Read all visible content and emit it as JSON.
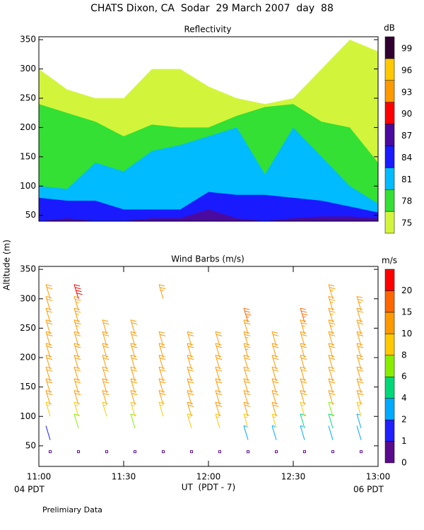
{
  "title": "CHATS Dixon, CA  Sodar  29 March 2007  day  88",
  "chart_data": [
    {
      "type": "contour",
      "title": "Reflectivity",
      "x": [
        660,
        670,
        680,
        690,
        700,
        710,
        720,
        730,
        740,
        750,
        760,
        770,
        780
      ],
      "xlim": [
        660,
        780
      ],
      "ylim": [
        40,
        355
      ],
      "yticks": [
        50,
        100,
        150,
        200,
        250,
        300,
        350
      ],
      "contours": [
        [
          300,
          265,
          250,
          250,
          300,
          300,
          270,
          250,
          240,
          250,
          300,
          350,
          330
        ],
        [
          240,
          225,
          210,
          185,
          205,
          200,
          200,
          220,
          235,
          240,
          210,
          200,
          140
        ],
        [
          100,
          95,
          140,
          125,
          160,
          170,
          185,
          200,
          120,
          200,
          150,
          100,
          70
        ],
        [
          80,
          75,
          75,
          60,
          60,
          60,
          90,
          85,
          85,
          80,
          75,
          65,
          55
        ],
        [
          40,
          45,
          40,
          40,
          45,
          45,
          60,
          45,
          40,
          45,
          48,
          48,
          45
        ]
      ],
      "colorbar": {
        "title": "dB",
        "levels": [
          75,
          78,
          81,
          84,
          87,
          90,
          93,
          96,
          99
        ],
        "colors": [
          "#d2f53c",
          "#33e033",
          "#00bbff",
          "#1a1aff",
          "#4a0aa0",
          "#ff0000",
          "#ff9900",
          "#ffc800",
          "#300030"
        ]
      }
    },
    {
      "type": "barb",
      "title": "Wind Barbs (m/s)",
      "ylabel": "Altitude (m)",
      "xlabel": "UT  (PDT - 7)",
      "start_note": "04 PDT",
      "end_note": "06 PDT",
      "footnote": "Prelimiary Data",
      "x": [
        664,
        674,
        684,
        694,
        704,
        714,
        724,
        734,
        744,
        754,
        764,
        774
      ],
      "altitudes": [
        40,
        60,
        80,
        100,
        120,
        140,
        160,
        180,
        200,
        220,
        240,
        260,
        280,
        300
      ],
      "speeds": [
        [
          0.5,
          1.5,
          null,
          9,
          10,
          10,
          11,
          11,
          11,
          12,
          12,
          12,
          12,
          11
        ],
        [
          0.5,
          null,
          6,
          9,
          10,
          11,
          11,
          12,
          12,
          12,
          13,
          13,
          14,
          20
        ],
        [
          0.5,
          null,
          null,
          9,
          10,
          10,
          11,
          11,
          11,
          12,
          12,
          null,
          null,
          null
        ],
        [
          0.5,
          null,
          6,
          9,
          10,
          11,
          11,
          11,
          12,
          12,
          12,
          null,
          null,
          null
        ],
        [
          0.5,
          null,
          null,
          9,
          10,
          11,
          11,
          12,
          12,
          12,
          null,
          null,
          null,
          13
        ],
        [
          0.5,
          null,
          9,
          10,
          10,
          11,
          11,
          12,
          12,
          12,
          null,
          null,
          null,
          null
        ],
        [
          0.5,
          null,
          9,
          10,
          11,
          11,
          12,
          12,
          12,
          12,
          null,
          null,
          null,
          null
        ],
        [
          0.5,
          3,
          9,
          10,
          11,
          11,
          12,
          12,
          13,
          13,
          12,
          19,
          null,
          null
        ],
        [
          0.5,
          3,
          9,
          10,
          11,
          11,
          11,
          12,
          12,
          12,
          null,
          null,
          null,
          null
        ],
        [
          0.5,
          3,
          5,
          9,
          10,
          11,
          11,
          12,
          12,
          12,
          13,
          19,
          null,
          null
        ],
        [
          0.5,
          2,
          5,
          6,
          10,
          11,
          11,
          12,
          12,
          12,
          13,
          13,
          13,
          13
        ],
        [
          0.5,
          2,
          3,
          9,
          10,
          11,
          12,
          12,
          12,
          12,
          12,
          12,
          13,
          null
        ]
      ],
      "xlim": [
        660,
        780
      ],
      "ylim": [
        15,
        355
      ],
      "xticks": [
        {
          "value": 660,
          "label": "11:00"
        },
        {
          "value": 690,
          "label": "11:30"
        },
        {
          "value": 720,
          "label": "12:00"
        },
        {
          "value": 750,
          "label": "12:30"
        },
        {
          "value": 780,
          "label": "13:00"
        }
      ],
      "yticks": [
        50,
        100,
        150,
        200,
        250,
        300,
        350
      ],
      "colorbar": {
        "title": "m/s",
        "levels": [
          0,
          1,
          2,
          4,
          6,
          8,
          10,
          15,
          20
        ],
        "colors": [
          "#5a0a8c",
          "#2020ff",
          "#00aaff",
          "#00d878",
          "#88ee00",
          "#ffc800",
          "#ff9900",
          "#ff6600",
          "#ff0000"
        ]
      }
    }
  ]
}
